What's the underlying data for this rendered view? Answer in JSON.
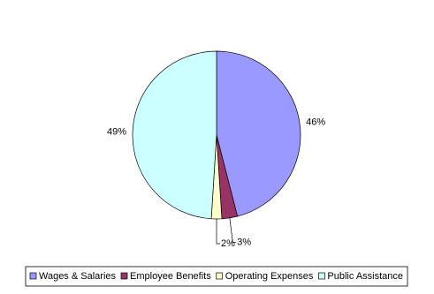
{
  "chart_data": {
    "type": "pie",
    "categories": [
      "Wages & Salaries",
      "Employee Benefits",
      "Operating Expenses",
      "Public Assistance"
    ],
    "values": [
      46,
      3,
      2,
      49
    ],
    "value_labels": [
      "46%",
      "3%",
      "2%",
      "49%"
    ],
    "colors": [
      "#9999ff",
      "#993366",
      "#ffffcc",
      "#ccffff"
    ],
    "legend": "bottom"
  }
}
